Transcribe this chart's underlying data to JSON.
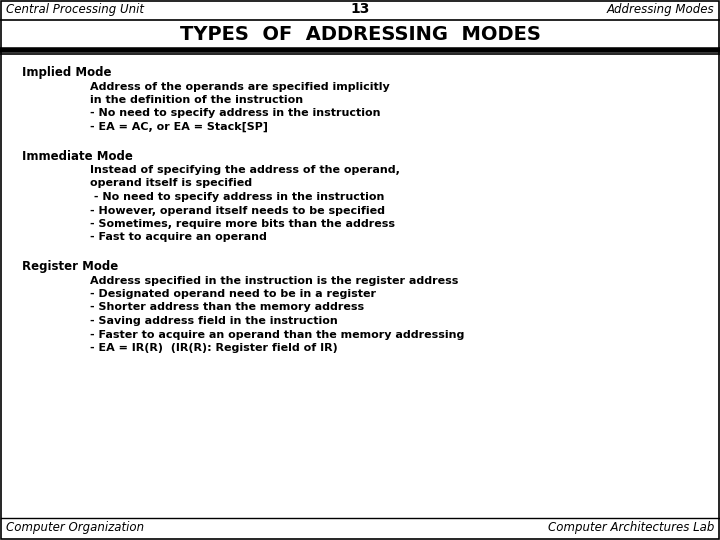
{
  "header_left": "Central Processing Unit",
  "header_center": "13",
  "header_right": "Addressing Modes",
  "title": "TYPES  OF  ADDRESSING  MODES",
  "footer_left": "Computer Organization",
  "footer_right": "Computer Architectures Lab",
  "bg_color": "#ffffff",
  "border_color": "#000000",
  "content": [
    {
      "mode": "Implied Mode",
      "indent1_lines": [
        "Address of the operands are specified implicitly",
        "in the definition of the instruction"
      ],
      "bullets": [
        "- No need to specify address in the instruction",
        "- EA = AC, or EA = Stack[SP]"
      ]
    },
    {
      "mode": "Immediate Mode",
      "indent1_lines": [
        "Instead of specifying the address of the operand,",
        "operand itself is specified"
      ],
      "bullets": [
        " - No need to specify address in the instruction",
        "- However, operand itself needs to be specified",
        "- Sometimes, require more bits than the address",
        "- Fast to acquire an operand"
      ]
    },
    {
      "mode": "Register Mode",
      "indent1_lines": [
        "Address specified in the instruction is the register address"
      ],
      "bullets": [
        "- Designated operand need to be in a register",
        "- Shorter address than the memory address",
        "- Saving address field in the instruction",
        "- Faster to acquire an operand than the memory addressing",
        "- EA = IR(R)  (IR(R): Register field of IR)"
      ]
    }
  ]
}
